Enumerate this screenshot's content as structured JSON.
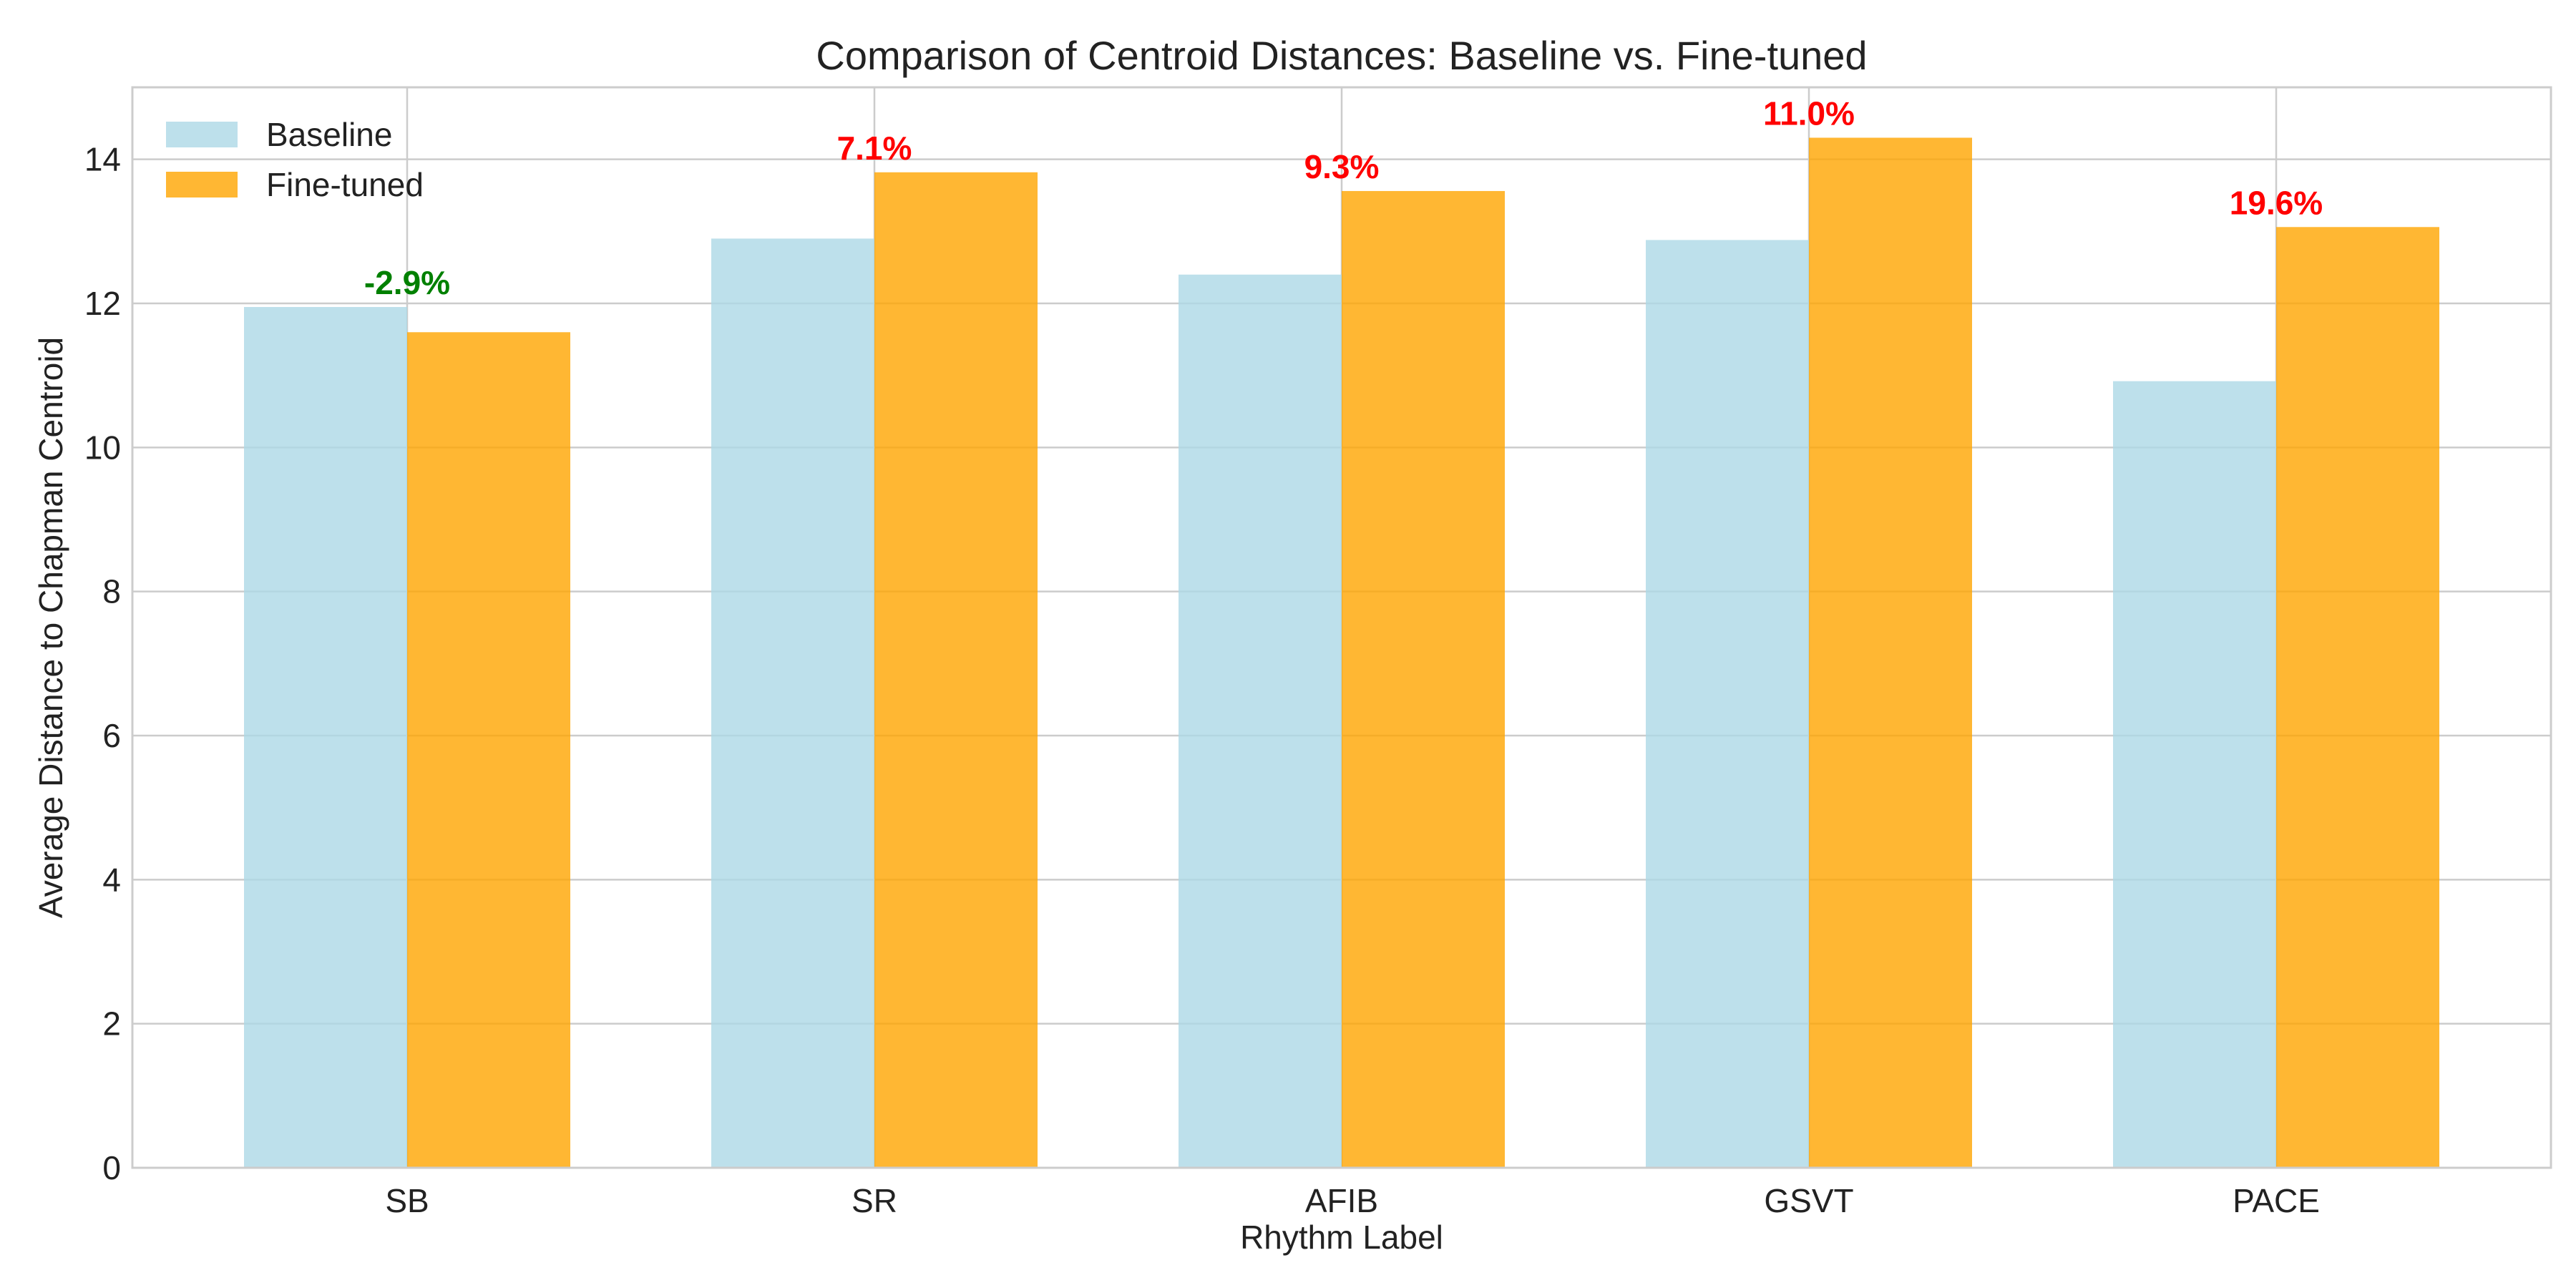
{
  "chart_data": {
    "type": "bar",
    "title": "Comparison of Centroid Distances: Baseline vs. Fine-tuned",
    "xlabel": "Rhythm Label",
    "ylabel": "Average Distance to Chapman Centroid",
    "categories": [
      "SB",
      "SR",
      "AFIB",
      "GSVT",
      "PACE"
    ],
    "series": [
      {
        "name": "Baseline",
        "color": "#add8e6",
        "values": [
          11.95,
          12.9,
          12.4,
          12.88,
          10.92
        ]
      },
      {
        "name": "Fine-tuned",
        "color": "#ffa500",
        "values": [
          11.6,
          13.82,
          13.56,
          14.3,
          13.06
        ]
      }
    ],
    "annotations": [
      {
        "category": "SB",
        "text": "-2.9%",
        "color": "#008000"
      },
      {
        "category": "SR",
        "text": "7.1%",
        "color": "#ff0000"
      },
      {
        "category": "AFIB",
        "text": "9.3%",
        "color": "#ff0000"
      },
      {
        "category": "GSVT",
        "text": "11.0%",
        "color": "#ff0000"
      },
      {
        "category": "PACE",
        "text": "19.6%",
        "color": "#ff0000"
      }
    ],
    "ylim": [
      0,
      15
    ],
    "yticks": [
      0,
      2,
      4,
      6,
      8,
      10,
      12,
      14
    ],
    "grid": true,
    "legend_position": "top-left"
  }
}
